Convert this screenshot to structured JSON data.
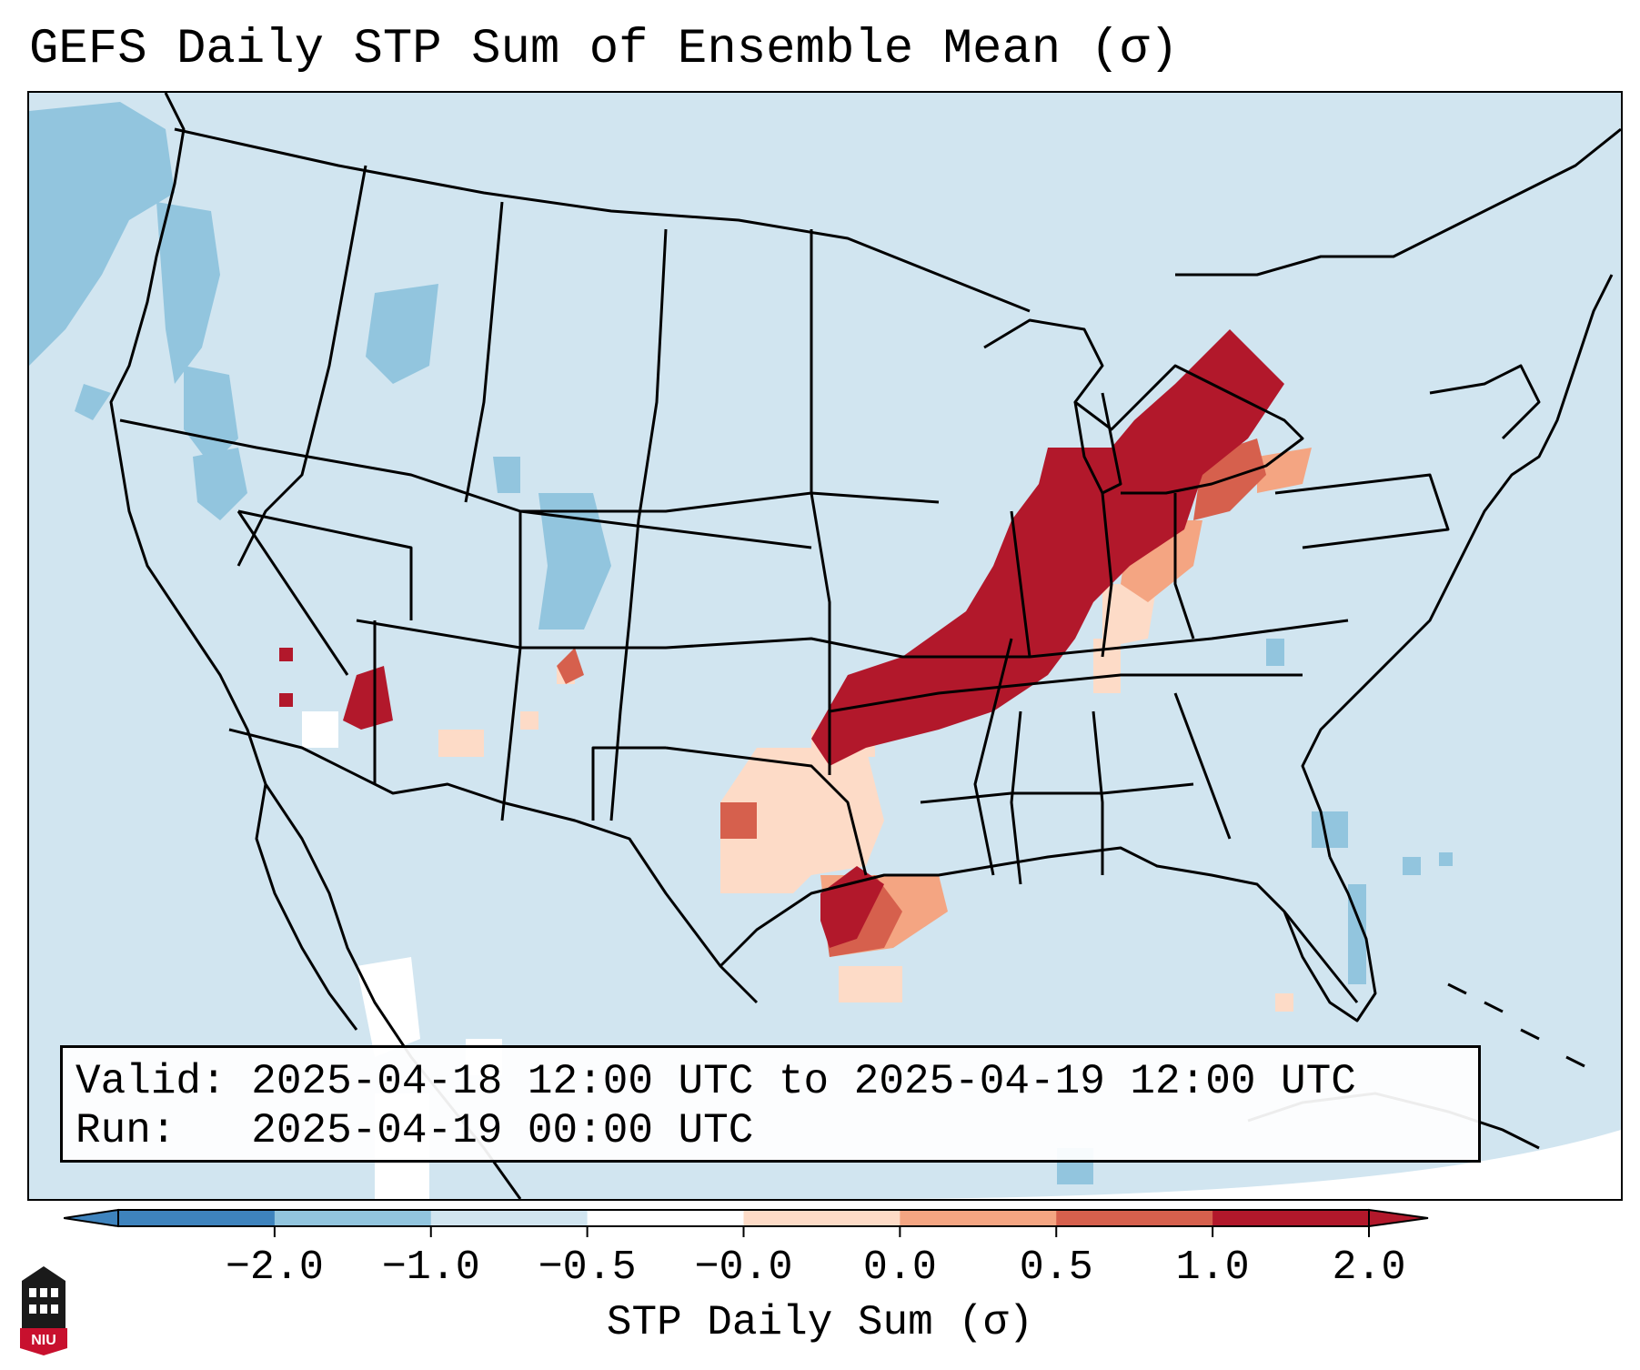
{
  "title": "GEFS Daily STP Sum of Ensemble Mean (σ)",
  "info": {
    "valid_label": "Valid:",
    "valid_value": "2025-04-18 12:00 UTC to 2025-04-19 12:00 UTC",
    "run_label": "Run:",
    "run_value": "2025-04-19 00:00 UTC"
  },
  "colorbar": {
    "title": "STP Daily Sum (σ)",
    "ticks": [
      "−2.0",
      "−1.0",
      "−0.5",
      "−0.0",
      "0.0",
      "0.5",
      "1.0",
      "2.0"
    ],
    "colors": [
      "#3e83bd",
      "#92c5de",
      "#d1e5f0",
      "#ffffff",
      "#fddbc7",
      "#f4a582",
      "#d6604d",
      "#b2182b"
    ]
  },
  "map": {
    "background_color": "#d1e5f0",
    "boundary_color": "#000000",
    "regions": [
      {
        "name": "Ohio Valley / Midwest",
        "level": "2.0",
        "color": "#b2182b"
      },
      {
        "name": "Southeast Texas coast",
        "level": "2.0",
        "color": "#b2182b"
      },
      {
        "name": "Central Arizona",
        "level": "2.0",
        "color": "#b2182b"
      },
      {
        "name": "Central Texas",
        "level": "0.0",
        "color": "#fddbc7"
      },
      {
        "name": "Pacific Northwest",
        "level": "-1.0",
        "color": "#92c5de"
      },
      {
        "name": "Colorado",
        "level": "-1.0",
        "color": "#92c5de"
      }
    ]
  },
  "logo": {
    "text": "NIU"
  }
}
